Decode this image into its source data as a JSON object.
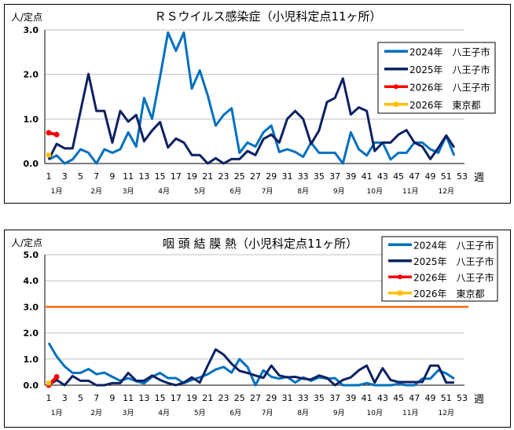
{
  "legend_labels": [
    "2024年　八王子市",
    "2025年　八王子市",
    "2026年　八王子市",
    "2026年　東京都"
  ],
  "colors": {
    "s2024": "#0070c0",
    "s2025": "#0d2162",
    "s2026": "#ff0000",
    "tokyo2026": "#ffc000",
    "reference": "#ff6a13",
    "grid": "#bfbfbf"
  },
  "chart_data": [
    {
      "type": "line",
      "title": "ＲＳウイルス感染症（小児科定点11ヶ所）",
      "ylabel": "人/定点",
      "xlabel": "週",
      "ylim": [
        0,
        3.0
      ],
      "yticks": [
        "0.0",
        "1.0",
        "2.0",
        "3.0"
      ],
      "xticks": [
        "1",
        "3",
        "5",
        "7",
        "9",
        "11",
        "13",
        "15",
        "17",
        "19",
        "21",
        "23",
        "25",
        "27",
        "29",
        "31",
        "33",
        "35",
        "37",
        "39",
        "41",
        "43",
        "45",
        "47",
        "49",
        "51",
        "53"
      ],
      "months": [
        "1月",
        "2月",
        "3月",
        "4月",
        "5月",
        "6月",
        "7月",
        "8月",
        "9月",
        "10月",
        "11月",
        "12月"
      ],
      "grid": true,
      "legend": "top-right",
      "series": [
        {
          "name": "2024年　八王子市",
          "values": [
            0.09,
            0.18,
            0,
            0.09,
            0.32,
            0.24,
            0,
            0.32,
            0.24,
            0.32,
            0.7,
            0.38,
            1.47,
            1.0,
            1.94,
            2.94,
            2.53,
            2.94,
            1.68,
            2.09,
            1.53,
            0.85,
            1.09,
            1.24,
            0.24,
            0.47,
            0.38,
            0.7,
            0.85,
            0.26,
            0.32,
            0.26,
            0.15,
            0.47,
            0.24,
            0.24,
            0.24,
            0,
            0.7,
            0.32,
            0.18,
            0.47,
            0.47,
            0.09,
            0.24,
            0.24,
            0.47,
            0.47,
            0.32,
            0.24,
            0.62,
            0.18
          ]
        },
        {
          "name": "2025年　八王子市",
          "values": [
            0.09,
            0.44,
            0.34,
            0.34,
            1.18,
            2.01,
            1.18,
            1.18,
            0.47,
            1.18,
            0.94,
            1.09,
            0.5,
            0.74,
            0.93,
            0.36,
            0.56,
            0.47,
            0.19,
            0.19,
            0,
            0.12,
            0,
            0.1,
            0.1,
            0.28,
            0.19,
            0.55,
            0.65,
            0.47,
            1.0,
            1.18,
            1.0,
            0.44,
            0.74,
            1.38,
            1.47,
            1.91,
            1.1,
            1.26,
            1.18,
            0.28,
            0.47,
            0.47,
            0.65,
            0.75,
            0.47,
            0.38,
            0.1,
            0.35,
            0.63,
            0.36
          ]
        },
        {
          "name": "2026年　八王子市",
          "values": [
            0.69,
            0.65
          ]
        },
        {
          "name": "2026年　東京都",
          "values": [
            0.19
          ]
        }
      ]
    },
    {
      "type": "line",
      "title": "咽 頭 結 膜 熱（小児科定点11ヶ所）",
      "ylabel": "人/定点",
      "xlabel": "週",
      "ylim": [
        0,
        5.0
      ],
      "yticks": [
        "0.0",
        "1.0",
        "2.0",
        "3.0",
        "4.0",
        "5.0"
      ],
      "xticks": [
        "1",
        "3",
        "5",
        "7",
        "9",
        "11",
        "13",
        "15",
        "17",
        "19",
        "21",
        "23",
        "25",
        "27",
        "29",
        "31",
        "33",
        "35",
        "37",
        "39",
        "41",
        "43",
        "45",
        "47",
        "49",
        "51",
        "53"
      ],
      "months": [
        "1月",
        "2月",
        "3月",
        "4月",
        "5月",
        "6月",
        "7月",
        "8月",
        "9月",
        "10月",
        "11月",
        "12月"
      ],
      "grid": true,
      "legend": "top-right",
      "reference_line": 3.0,
      "series": [
        {
          "name": "2024年　八王子市",
          "values": [
            1.62,
            1.1,
            0.72,
            0.47,
            0.47,
            0.62,
            0.42,
            0.48,
            0.32,
            0.17,
            0.27,
            0.15,
            0.07,
            0.32,
            0.47,
            0.27,
            0.27,
            0.08,
            0.2,
            0.3,
            0.42,
            0.6,
            0.7,
            0.48,
            1.0,
            0.7,
            0,
            0.57,
            0.32,
            0.25,
            0.32,
            0.1,
            0.3,
            0.17,
            0.3,
            0.25,
            0.27,
            0,
            0,
            0,
            0.08,
            0,
            0,
            0,
            0.05,
            0,
            0,
            0.25,
            0.25,
            0.57,
            0.45,
            0.25
          ]
        },
        {
          "name": "2025年　八王子市",
          "values": [
            0,
            0.2,
            0,
            0.35,
            0.17,
            0.17,
            0,
            0,
            0.08,
            0.08,
            0.47,
            0.17,
            0.17,
            0.37,
            0.2,
            0.08,
            0,
            0.1,
            0.3,
            0.1,
            0.75,
            1.37,
            1.17,
            0.82,
            0.55,
            0.47,
            0.37,
            0.28,
            0.75,
            0.37,
            0.3,
            0.32,
            0.25,
            0.22,
            0.37,
            0.28,
            0,
            0.2,
            0.3,
            0.57,
            0.75,
            0.1,
            0.65,
            0.2,
            0.12,
            0.12,
            0.12,
            0.12,
            0.75,
            0.75,
            0.1,
            0.1
          ]
        },
        {
          "name": "2026年　八王子市",
          "values": [
            0.0,
            0.32
          ]
        },
        {
          "name": "2026年　東京都",
          "values": [
            0.08
          ]
        }
      ]
    }
  ]
}
